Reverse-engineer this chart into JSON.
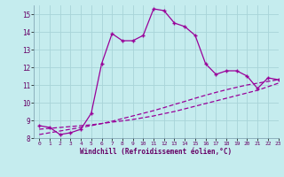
{
  "xlabel": "Windchill (Refroidissement éolien,°C)",
  "background_color": "#c5ecee",
  "grid_color": "#a8d4d8",
  "line_color": "#990099",
  "x_hours": [
    0,
    1,
    2,
    3,
    4,
    5,
    6,
    7,
    8,
    9,
    10,
    11,
    12,
    13,
    14,
    15,
    16,
    17,
    18,
    19,
    20,
    21,
    22,
    23
  ],
  "windchill": [
    8.7,
    8.6,
    8.2,
    8.3,
    8.5,
    9.4,
    12.2,
    13.9,
    13.5,
    13.5,
    13.8,
    15.3,
    15.2,
    14.5,
    14.3,
    13.8,
    12.2,
    11.6,
    11.8,
    11.8,
    11.5,
    10.8,
    11.4,
    11.3
  ],
  "line2": [
    8.5,
    8.55,
    8.6,
    8.65,
    8.7,
    8.75,
    8.82,
    8.9,
    8.97,
    9.05,
    9.15,
    9.25,
    9.38,
    9.5,
    9.65,
    9.8,
    9.95,
    10.1,
    10.25,
    10.4,
    10.55,
    10.7,
    10.9,
    11.1
  ],
  "line3": [
    8.2,
    8.3,
    8.4,
    8.5,
    8.6,
    8.7,
    8.82,
    8.95,
    9.1,
    9.25,
    9.4,
    9.55,
    9.72,
    9.9,
    10.07,
    10.25,
    10.42,
    10.58,
    10.73,
    10.87,
    11.0,
    11.1,
    11.2,
    11.3
  ],
  "ylim": [
    8,
    15.5
  ],
  "xlim": [
    -0.5,
    23
  ],
  "yticks": [
    8,
    9,
    10,
    11,
    12,
    13,
    14,
    15
  ],
  "xticks": [
    0,
    1,
    2,
    3,
    4,
    5,
    6,
    7,
    8,
    9,
    10,
    11,
    12,
    13,
    14,
    15,
    16,
    17,
    18,
    19,
    20,
    21,
    22,
    23
  ]
}
